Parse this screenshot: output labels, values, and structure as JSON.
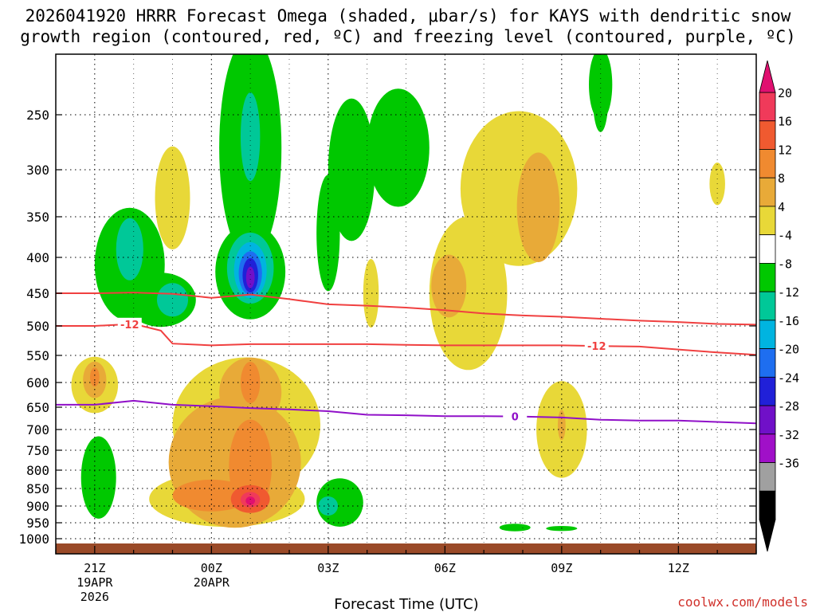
{
  "title_line1": "2026041920 HRRR Forecast Omega (shaded, μbar/s) for KAYS with dendritic snow",
  "title_line2": "growth region (contoured, red, ºC) and freezing level (contoured, purple, ºC)",
  "credit": "coolwx.com/models",
  "chart_data": {
    "type": "heatmap",
    "title": "2026041920 HRRR Forecast Omega (shaded, μbar/s) for KAYS with dendritic snow growth region (contoured, red, ºC) and freezing level (contoured, purple, ºC)",
    "xlabel": "Forecast Time (UTC)",
    "ylabel": "",
    "x_range_hours": [
      -1,
      17
    ],
    "x_ticks": [
      {
        "h": 0,
        "label": "21Z",
        "sub": [
          "19APR",
          "2026"
        ]
      },
      {
        "h": 3,
        "label": "00Z",
        "sub": [
          "20APR"
        ]
      },
      {
        "h": 6,
        "label": "03Z",
        "sub": []
      },
      {
        "h": 9,
        "label": "06Z",
        "sub": []
      },
      {
        "h": 12,
        "label": "09Z",
        "sub": []
      },
      {
        "h": 15,
        "label": "12Z",
        "sub": []
      }
    ],
    "y_ticks_hpa": [
      250,
      300,
      350,
      400,
      450,
      500,
      550,
      600,
      650,
      700,
      750,
      800,
      850,
      900,
      950,
      1000
    ],
    "y_range_hpa": [
      200,
      1020
    ],
    "colorbar": {
      "labels": [
        "20",
        "16",
        "12",
        "8",
        "4",
        "-4",
        "-8",
        "-12",
        "-16",
        "-20",
        "-24",
        "-28",
        "-32",
        "-36"
      ],
      "colors": [
        "#f03a5a",
        "#f05a30",
        "#f08a30",
        "#e8aa38",
        "#e8d838",
        "#ffffff",
        "#00c800",
        "#00c898",
        "#00b4e0",
        "#1e6ef0",
        "#2020d8",
        "#7010c8",
        "#a010c8",
        "#a0a0a0",
        "#000000"
      ],
      "top_arrow_color": "#e01070",
      "bottom_arrow_color": "#000000"
    },
    "contours": [
      {
        "name": "dendritic-top",
        "label": "",
        "color": "#f04040",
        "points": [
          [
            -1,
            450
          ],
          [
            0,
            450
          ],
          [
            1,
            449
          ],
          [
            2,
            451
          ],
          [
            3,
            457
          ],
          [
            4,
            452
          ],
          [
            5,
            459
          ],
          [
            6,
            467
          ],
          [
            7,
            469
          ],
          [
            8,
            472
          ],
          [
            9,
            476
          ],
          [
            10,
            481
          ],
          [
            11,
            484
          ],
          [
            12,
            486
          ],
          [
            13,
            489
          ],
          [
            14,
            492
          ],
          [
            15,
            494
          ],
          [
            16,
            497
          ],
          [
            17,
            498
          ]
        ]
      },
      {
        "name": "dendritic-bottom",
        "label": "-12",
        "label_h": [
          0.9,
          12.9
        ],
        "color": "#f04040",
        "points": [
          [
            -1,
            500
          ],
          [
            0,
            500
          ],
          [
            1,
            497
          ],
          [
            1.7,
            508
          ],
          [
            2,
            530
          ],
          [
            3,
            533
          ],
          [
            4,
            531
          ],
          [
            5,
            531
          ],
          [
            6,
            531
          ],
          [
            7,
            531
          ],
          [
            8,
            532
          ],
          [
            9,
            533
          ],
          [
            10,
            533
          ],
          [
            11,
            533
          ],
          [
            12,
            533
          ],
          [
            13,
            534
          ],
          [
            14,
            535
          ],
          [
            15,
            540
          ],
          [
            16,
            545
          ],
          [
            17,
            549
          ]
        ]
      },
      {
        "name": "freezing-level",
        "label": "0",
        "label_h": [
          10.8
        ],
        "color": "#9010c8",
        "points": [
          [
            -1,
            645
          ],
          [
            0,
            645
          ],
          [
            1,
            637
          ],
          [
            2,
            645
          ],
          [
            3,
            648
          ],
          [
            4,
            652
          ],
          [
            5,
            655
          ],
          [
            6,
            659
          ],
          [
            7,
            667
          ],
          [
            8,
            668
          ],
          [
            9,
            670
          ],
          [
            10,
            670
          ],
          [
            11,
            671
          ],
          [
            12,
            673
          ],
          [
            13,
            678
          ],
          [
            14,
            680
          ],
          [
            15,
            680
          ],
          [
            16,
            683
          ],
          [
            17,
            686
          ]
        ]
      }
    ],
    "omega_regions": [
      {
        "color": "#00c800",
        "cx": 0.9,
        "cy": 410,
        "rx": 0.9,
        "ry": 75
      },
      {
        "color": "#00c800",
        "cx": 1.7,
        "cy": 460,
        "rx": 0.9,
        "ry": 40
      },
      {
        "color": "#00c898",
        "cx": 0.9,
        "cy": 390,
        "rx": 0.35,
        "ry": 40
      },
      {
        "color": "#00c898",
        "cx": 2.0,
        "cy": 460,
        "rx": 0.4,
        "ry": 25
      },
      {
        "color": "#00c800",
        "cx": 4.0,
        "cy": 280,
        "rx": 0.8,
        "ry": 150
      },
      {
        "color": "#00c800",
        "cx": 4.0,
        "cy": 420,
        "rx": 0.9,
        "ry": 65
      },
      {
        "color": "#00c898",
        "cx": 4.0,
        "cy": 270,
        "rx": 0.25,
        "ry": 40
      },
      {
        "color": "#00c898",
        "cx": 4.0,
        "cy": 415,
        "rx": 0.6,
        "ry": 48
      },
      {
        "color": "#00b4e0",
        "cx": 4.0,
        "cy": 418,
        "rx": 0.42,
        "ry": 38
      },
      {
        "color": "#1e6ef0",
        "cx": 4.0,
        "cy": 422,
        "rx": 0.3,
        "ry": 30
      },
      {
        "color": "#2020d8",
        "cx": 4.0,
        "cy": 425,
        "rx": 0.2,
        "ry": 24
      },
      {
        "color": "#7010c8",
        "cx": 4.0,
        "cy": 428,
        "rx": 0.11,
        "ry": 15
      },
      {
        "color": "#00c800",
        "cx": 6.6,
        "cy": 300,
        "rx": 0.6,
        "ry": 70
      },
      {
        "color": "#00c800",
        "cx": 7.8,
        "cy": 280,
        "rx": 0.8,
        "ry": 55
      },
      {
        "color": "#00c800",
        "cx": 6.0,
        "cy": 370,
        "rx": 0.3,
        "ry": 70
      },
      {
        "color": "#00c800",
        "cx": 13.0,
        "cy": 225,
        "rx": 0.3,
        "ry": 35
      },
      {
        "color": "#e8d838",
        "cx": 2.0,
        "cy": 330,
        "rx": 0.45,
        "ry": 55
      },
      {
        "color": "#e8d838",
        "cx": 7.1,
        "cy": 450,
        "rx": 0.2,
        "ry": 50
      },
      {
        "color": "#e8d838",
        "cx": 10.9,
        "cy": 320,
        "rx": 1.5,
        "ry": 80
      },
      {
        "color": "#e8d838",
        "cx": 9.6,
        "cy": 450,
        "rx": 1.0,
        "ry": 110
      },
      {
        "color": "#e8aa38",
        "cx": 11.4,
        "cy": 340,
        "rx": 0.55,
        "ry": 60
      },
      {
        "color": "#e8aa38",
        "cx": 9.1,
        "cy": 440,
        "rx": 0.45,
        "ry": 45
      },
      {
        "color": "#e8d838",
        "cx": 16.0,
        "cy": 315,
        "rx": 0.2,
        "ry": 22
      },
      {
        "color": "#e8d838",
        "cx": 0.0,
        "cy": 605,
        "rx": 0.6,
        "ry": 55
      },
      {
        "color": "#e8aa38",
        "cx": 0.0,
        "cy": 595,
        "rx": 0.3,
        "ry": 35
      },
      {
        "color": "#f08a30",
        "cx": 0.0,
        "cy": 590,
        "rx": 0.12,
        "ry": 18
      },
      {
        "color": "#e8d838",
        "cx": 3.9,
        "cy": 690,
        "rx": 1.9,
        "ry": 150
      },
      {
        "color": "#e8d838",
        "cx": 3.4,
        "cy": 880,
        "rx": 2.0,
        "ry": 80
      },
      {
        "color": "#e8aa38",
        "cx": 3.6,
        "cy": 780,
        "rx": 1.7,
        "ry": 165
      },
      {
        "color": "#e8aa38",
        "cx": 4.0,
        "cy": 620,
        "rx": 0.8,
        "ry": 70
      },
      {
        "color": "#f08a30",
        "cx": 3.0,
        "cy": 870,
        "rx": 1.0,
        "ry": 45
      },
      {
        "color": "#f08a30",
        "cx": 4.0,
        "cy": 790,
        "rx": 0.55,
        "ry": 120
      },
      {
        "color": "#f08a30",
        "cx": 4.0,
        "cy": 600,
        "rx": 0.25,
        "ry": 40
      },
      {
        "color": "#f05a30",
        "cx": 4.0,
        "cy": 880,
        "rx": 0.5,
        "ry": 40
      },
      {
        "color": "#f03a5a",
        "cx": 4.0,
        "cy": 882,
        "rx": 0.25,
        "ry": 22
      },
      {
        "color": "#e01070",
        "cx": 4.0,
        "cy": 885,
        "rx": 0.12,
        "ry": 12
      },
      {
        "color": "#e8d838",
        "cx": 12.0,
        "cy": 700,
        "rx": 0.65,
        "ry": 110
      },
      {
        "color": "#e8aa38",
        "cx": 12.0,
        "cy": 690,
        "rx": 0.1,
        "ry": 35
      },
      {
        "color": "#00c800",
        "cx": 0.1,
        "cy": 820,
        "rx": 0.45,
        "ry": 110
      },
      {
        "color": "#00c800",
        "cx": 6.3,
        "cy": 890,
        "rx": 0.6,
        "ry": 70
      },
      {
        "color": "#00c898",
        "cx": 6.0,
        "cy": 900,
        "rx": 0.25,
        "ry": 28
      },
      {
        "color": "#00c800",
        "cx": 10.8,
        "cy": 965,
        "rx": 0.4,
        "ry": 12
      },
      {
        "color": "#00c800",
        "cx": 12.0,
        "cy": 968,
        "rx": 0.4,
        "ry": 8
      },
      {
        "color": "#00c800",
        "cx": 13.0,
        "cy": 235,
        "rx": 0.2,
        "ry": 30
      }
    ],
    "ground_color": "#9a4a28"
  }
}
